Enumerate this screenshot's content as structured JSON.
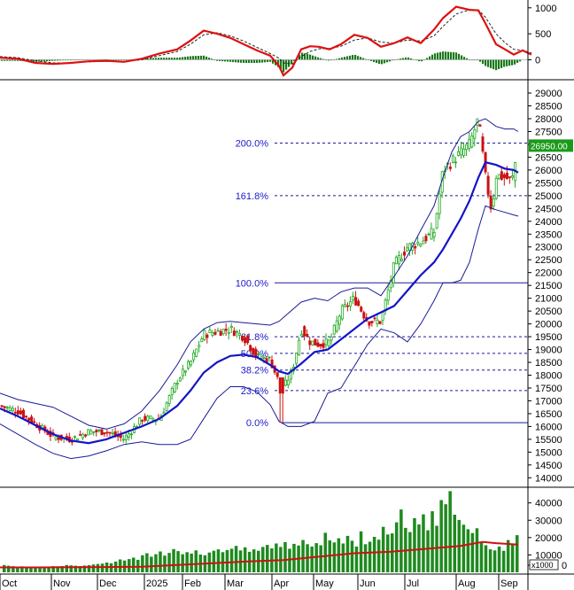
{
  "chart_data": [
    {
      "type": "line",
      "panel": "macd",
      "yticks": [
        0,
        500,
        1000
      ],
      "ylim": [
        -350,
        1150
      ],
      "series": [
        {
          "color": "#dd1111",
          "values": [
            [
              0,
              40
            ],
            [
              20,
              20
            ],
            [
              40,
              -60
            ],
            [
              60,
              -80
            ],
            [
              80,
              -60
            ],
            [
              100,
              -30
            ],
            [
              120,
              -20
            ],
            [
              140,
              -40
            ],
            [
              160,
              20
            ],
            [
              180,
              120
            ],
            [
              200,
              200
            ],
            [
              215,
              370
            ],
            [
              230,
              560
            ],
            [
              245,
              500
            ],
            [
              260,
              420
            ],
            [
              275,
              300
            ],
            [
              290,
              180
            ],
            [
              305,
              80
            ],
            [
              315,
              -120
            ],
            [
              320,
              -300
            ],
            [
              330,
              -150
            ],
            [
              340,
              200
            ],
            [
              350,
              260
            ],
            [
              360,
              250
            ],
            [
              372,
              200
            ],
            [
              385,
              300
            ],
            [
              400,
              480
            ],
            [
              415,
              420
            ],
            [
              430,
              250
            ],
            [
              445,
              320
            ],
            [
              460,
              430
            ],
            [
              475,
              320
            ],
            [
              490,
              580
            ],
            [
              500,
              800
            ],
            [
              515,
              1020
            ],
            [
              530,
              960
            ],
            [
              540,
              950
            ],
            [
              548,
              700
            ],
            [
              560,
              300
            ],
            [
              570,
              200
            ],
            [
              580,
              100
            ],
            [
              590,
              180
            ],
            [
              600,
              100
            ]
          ]
        },
        {
          "color": "#222222",
          "dashed": true,
          "values": [
            [
              0,
              60
            ],
            [
              20,
              40
            ],
            [
              40,
              -20
            ],
            [
              60,
              -60
            ],
            [
              80,
              -60
            ],
            [
              100,
              -40
            ],
            [
              120,
              -30
            ],
            [
              140,
              -30
            ],
            [
              160,
              0
            ],
            [
              180,
              80
            ],
            [
              200,
              160
            ],
            [
              215,
              300
            ],
            [
              230,
              480
            ],
            [
              245,
              520
            ],
            [
              260,
              460
            ],
            [
              275,
              360
            ],
            [
              290,
              240
            ],
            [
              305,
              120
            ],
            [
              315,
              30
            ],
            [
              320,
              -60
            ],
            [
              330,
              -80
            ],
            [
              340,
              60
            ],
            [
              350,
              160
            ],
            [
              360,
              210
            ],
            [
              372,
              220
            ],
            [
              385,
              260
            ],
            [
              400,
              380
            ],
            [
              415,
              420
            ],
            [
              430,
              340
            ],
            [
              445,
              320
            ],
            [
              460,
              380
            ],
            [
              475,
              360
            ],
            [
              490,
              460
            ],
            [
              500,
              640
            ],
            [
              515,
              880
            ],
            [
              530,
              960
            ],
            [
              540,
              960
            ],
            [
              548,
              820
            ],
            [
              560,
              500
            ],
            [
              570,
              330
            ],
            [
              580,
              200
            ],
            [
              590,
              180
            ],
            [
              600,
              130
            ]
          ]
        }
      ]
    },
    {
      "type": "candlestick",
      "panel": "price",
      "x_labels": [
        "Oct",
        "Nov",
        "Dec",
        "2025",
        "Feb",
        "Mar",
        "Apr",
        "May",
        "Jun",
        "Jul",
        "Aug",
        "Sep"
      ],
      "yticks": [
        14000,
        14500,
        15000,
        15500,
        16000,
        16500,
        17000,
        17500,
        18000,
        18500,
        19000,
        19500,
        20000,
        20500,
        21000,
        21500,
        22000,
        22500,
        23000,
        23500,
        24000,
        24500,
        25000,
        25500,
        26000,
        26500,
        27000,
        27500,
        28000,
        28500,
        29000
      ],
      "ylim": [
        13700,
        29450
      ],
      "last_price_label": "26950.00",
      "fibonacci": [
        {
          "label": "200.0%",
          "value": 27050
        },
        {
          "label": "161.8%",
          "value": 25000
        },
        {
          "label": "100.0%",
          "value": 21600
        },
        {
          "label": "61.8%",
          "value": 19500
        },
        {
          "label": "50.0%",
          "value": 18850
        },
        {
          "label": "38.2%",
          "value": 18200
        },
        {
          "label": "23.6%",
          "value": 17400
        },
        {
          "label": "0.0%",
          "value": 16150
        }
      ],
      "ma": [
        [
          0,
          16700
        ],
        [
          20,
          16400
        ],
        [
          40,
          16050
        ],
        [
          60,
          15700
        ],
        [
          80,
          15450
        ],
        [
          100,
          15350
        ],
        [
          120,
          15500
        ],
        [
          140,
          15750
        ],
        [
          160,
          16000
        ],
        [
          180,
          16300
        ],
        [
          200,
          16800
        ],
        [
          215,
          17400
        ],
        [
          230,
          18100
        ],
        [
          245,
          18500
        ],
        [
          260,
          18750
        ],
        [
          275,
          18800
        ],
        [
          290,
          18700
        ],
        [
          305,
          18400
        ],
        [
          315,
          18150
        ],
        [
          325,
          18050
        ],
        [
          340,
          18450
        ],
        [
          355,
          18900
        ],
        [
          370,
          19000
        ],
        [
          385,
          19400
        ],
        [
          400,
          19800
        ],
        [
          415,
          20200
        ],
        [
          430,
          20450
        ],
        [
          445,
          20700
        ],
        [
          460,
          21300
        ],
        [
          475,
          21900
        ],
        [
          490,
          22400
        ],
        [
          500,
          22900
        ],
        [
          510,
          23500
        ],
        [
          520,
          24100
        ],
        [
          530,
          24800
        ],
        [
          540,
          25700
        ],
        [
          548,
          26300
        ],
        [
          560,
          26200
        ],
        [
          570,
          26050
        ],
        [
          580,
          26000
        ],
        [
          585,
          25900
        ]
      ],
      "bb_upper": [
        [
          0,
          17300
        ],
        [
          20,
          17050
        ],
        [
          40,
          16900
        ],
        [
          60,
          16750
        ],
        [
          80,
          16400
        ],
        [
          100,
          16050
        ],
        [
          120,
          15900
        ],
        [
          140,
          16100
        ],
        [
          160,
          16600
        ],
        [
          180,
          17400
        ],
        [
          200,
          18400
        ],
        [
          215,
          19300
        ],
        [
          230,
          19800
        ],
        [
          245,
          20050
        ],
        [
          260,
          20100
        ],
        [
          275,
          20050
        ],
        [
          290,
          20000
        ],
        [
          305,
          19950
        ],
        [
          315,
          20100
        ],
        [
          325,
          20400
        ],
        [
          340,
          20850
        ],
        [
          355,
          21000
        ],
        [
          370,
          20900
        ],
        [
          385,
          21250
        ],
        [
          400,
          21400
        ],
        [
          415,
          21400
        ],
        [
          430,
          21100
        ],
        [
          445,
          21850
        ],
        [
          460,
          22650
        ],
        [
          475,
          23650
        ],
        [
          490,
          24600
        ],
        [
          500,
          25700
        ],
        [
          510,
          26700
        ],
        [
          520,
          27300
        ],
        [
          530,
          27500
        ],
        [
          540,
          27900
        ],
        [
          548,
          28000
        ],
        [
          560,
          27700
        ],
        [
          570,
          27600
        ],
        [
          580,
          27600
        ],
        [
          585,
          27500
        ]
      ],
      "bb_lower": [
        [
          0,
          16100
        ],
        [
          20,
          15700
        ],
        [
          40,
          15300
        ],
        [
          60,
          14950
        ],
        [
          80,
          14750
        ],
        [
          100,
          14850
        ],
        [
          120,
          15050
        ],
        [
          140,
          15300
        ],
        [
          160,
          15400
        ],
        [
          180,
          15300
        ],
        [
          200,
          15300
        ],
        [
          215,
          15500
        ],
        [
          230,
          16300
        ],
        [
          245,
          17100
        ],
        [
          260,
          17550
        ],
        [
          275,
          17550
        ],
        [
          290,
          17350
        ],
        [
          305,
          16850
        ],
        [
          315,
          16200
        ],
        [
          325,
          16000
        ],
        [
          340,
          16000
        ],
        [
          355,
          16200
        ],
        [
          370,
          17300
        ],
        [
          385,
          17500
        ],
        [
          400,
          18350
        ],
        [
          415,
          19200
        ],
        [
          430,
          19800
        ],
        [
          445,
          19650
        ],
        [
          460,
          19300
        ],
        [
          475,
          20000
        ],
        [
          490,
          20900
        ],
        [
          500,
          21600
        ],
        [
          510,
          21600
        ],
        [
          520,
          21700
        ],
        [
          530,
          22400
        ],
        [
          540,
          23700
        ],
        [
          548,
          24600
        ],
        [
          560,
          24450
        ],
        [
          570,
          24350
        ],
        [
          580,
          24250
        ],
        [
          585,
          24200
        ]
      ],
      "path": [
        [
          0,
          16800
        ],
        [
          20,
          16600
        ],
        [
          40,
          16100
        ],
        [
          60,
          15600
        ],
        [
          80,
          15500
        ],
        [
          100,
          15800
        ],
        [
          120,
          15800
        ],
        [
          140,
          15500
        ],
        [
          160,
          16300
        ],
        [
          180,
          16300
        ],
        [
          200,
          17800
        ],
        [
          215,
          18500
        ],
        [
          230,
          19600
        ],
        [
          245,
          19700
        ],
        [
          260,
          19800
        ],
        [
          275,
          19500
        ],
        [
          290,
          18700
        ],
        [
          305,
          18600
        ],
        [
          315,
          17700
        ],
        [
          320,
          17500
        ],
        [
          330,
          18200
        ],
        [
          340,
          19800
        ],
        [
          350,
          19300
        ],
        [
          360,
          19200
        ],
        [
          372,
          19300
        ],
        [
          385,
          20500
        ],
        [
          400,
          21000
        ],
        [
          415,
          20100
        ],
        [
          430,
          20100
        ],
        [
          445,
          22300
        ],
        [
          460,
          23000
        ],
        [
          475,
          23200
        ],
        [
          490,
          23600
        ],
        [
          500,
          26000
        ],
        [
          515,
          26500
        ],
        [
          530,
          27000
        ],
        [
          540,
          28000
        ],
        [
          548,
          25700
        ],
        [
          555,
          24400
        ],
        [
          560,
          25800
        ],
        [
          570,
          25700
        ],
        [
          578,
          25600
        ],
        [
          585,
          26950
        ]
      ]
    },
    {
      "type": "bar",
      "panel": "volume",
      "units_label": "x1000",
      "yticks": [
        0,
        10000,
        20000,
        30000,
        40000
      ],
      "ylim": [
        0,
        48000
      ],
      "values": [
        4200,
        3800,
        3500,
        3300,
        3400,
        3200,
        3000,
        3100,
        2900,
        3000,
        3200,
        3500,
        3400,
        3600,
        4200,
        4000,
        3800,
        3600,
        3900,
        4100,
        4500,
        4800,
        5000,
        5600,
        5200,
        6200,
        7400,
        6800,
        7600,
        8400,
        7200,
        9800,
        11000,
        9000,
        10400,
        12000,
        9600,
        11200,
        13400,
        12200,
        10400,
        11600,
        10800,
        12600,
        10200,
        9800,
        11400,
        12400,
        13200,
        11600,
        12800,
        13600,
        15200,
        12600,
        14400,
        11800,
        13200,
        12400,
        14600,
        15800,
        13800,
        16600,
        14600,
        17400,
        13600,
        16400,
        15400,
        18600,
        16200,
        14800,
        16800,
        15600,
        22800,
        18400,
        17200,
        19600,
        16600,
        21000,
        18200,
        14800,
        23600,
        16200,
        17600,
        20400,
        18800,
        26200,
        21800,
        22400,
        28800,
        36200,
        25600,
        23200,
        31200,
        27600,
        33400,
        24200,
        35200,
        26800,
        41600,
        39200,
        46800,
        33200,
        30200,
        27400,
        24800,
        22600,
        25400,
        17200,
        15600,
        13200,
        12600,
        14800,
        12400,
        18600,
        16400,
        21400
      ],
      "ma": [
        [
          0,
          2800
        ],
        [
          40,
          2800
        ],
        [
          80,
          2900
        ],
        [
          120,
          3000
        ],
        [
          160,
          3200
        ],
        [
          200,
          4200
        ],
        [
          240,
          5200
        ],
        [
          280,
          6300
        ],
        [
          320,
          7000
        ],
        [
          360,
          9000
        ],
        [
          400,
          11000
        ],
        [
          440,
          11800
        ],
        [
          480,
          13500
        ],
        [
          520,
          15200
        ],
        [
          545,
          17500
        ],
        [
          560,
          16800
        ],
        [
          585,
          16000
        ]
      ]
    }
  ]
}
